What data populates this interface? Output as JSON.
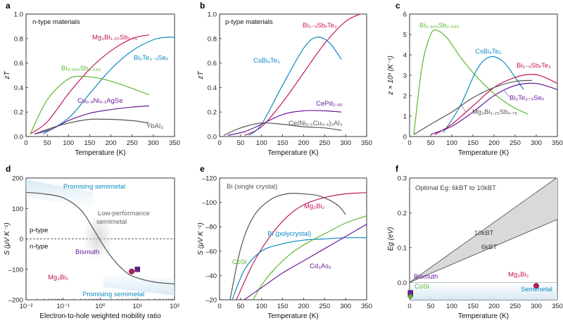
{
  "figure": {
    "panels": [
      "a",
      "b",
      "c",
      "d",
      "e",
      "f"
    ]
  },
  "colors": {
    "green": "#5DB82E",
    "red": "#C2185B",
    "blue": "#0C8AC2",
    "purple": "#6A1B9A",
    "gray": "#555555",
    "shade": "#D6E8F4",
    "gapfill": "#D9D9D9"
  },
  "chart_data": [
    {
      "id": "a",
      "type": "line",
      "title": "n-type materials",
      "xlabel": "Temperature (K)",
      "ylabel": "zT",
      "xlim": [
        0,
        350
      ],
      "ylim": [
        0,
        1.0
      ],
      "xticks": [
        "0",
        "50",
        "100",
        "150",
        "200",
        "250",
        "300",
        "350"
      ],
      "yticks": [
        "0.0",
        "0.2",
        "0.4",
        "0.6",
        "0.8",
        "1.0"
      ],
      "series": [
        {
          "name": "Mg3Bi1.25Sb0.75",
          "color": "red",
          "x": [
            10,
            50,
            100,
            150,
            200,
            250,
            290
          ],
          "y": [
            0.02,
            0.12,
            0.35,
            0.55,
            0.7,
            0.8,
            0.83
          ]
        },
        {
          "name": "Bi2Te3–xSex",
          "color": "blue",
          "x": [
            40,
            100,
            150,
            200,
            250,
            300,
            330,
            350
          ],
          "y": [
            0.02,
            0.15,
            0.35,
            0.55,
            0.7,
            0.79,
            0.81,
            0.81
          ]
        },
        {
          "name": "Bi0.905Sb0.095",
          "color": "green",
          "x": [
            10,
            50,
            100,
            140,
            180,
            220,
            260,
            290
          ],
          "y": [
            0.02,
            0.3,
            0.47,
            0.49,
            0.47,
            0.43,
            0.38,
            0.34
          ]
        },
        {
          "name": "Cu0.9Ni0.1AgSe",
          "color": "purple",
          "x": [
            20,
            60,
            100,
            150,
            200,
            250,
            290
          ],
          "y": [
            0.02,
            0.06,
            0.13,
            0.19,
            0.22,
            0.24,
            0.25
          ]
        },
        {
          "name": "YbAl3",
          "color": "gray",
          "x": [
            20,
            60,
            100,
            150,
            200,
            250,
            290
          ],
          "y": [
            0.02,
            0.07,
            0.11,
            0.14,
            0.14,
            0.13,
            0.11
          ]
        }
      ],
      "labels": [
        {
          "text": "n-type materials"
        },
        {
          "text": "Mg₃Bi₁.₂₅Sb₀.₇₅"
        },
        {
          "text": "Bi₂Te₃₋ₓSeₓ"
        },
        {
          "text": "Bi₀.₉₀₅Sb₀.₀₉₅"
        },
        {
          "text": "Cu₀.₉Ni₀.₁AgSe"
        },
        {
          "text": "YbAl₃"
        }
      ]
    },
    {
      "id": "b",
      "type": "line",
      "title": "p-type materials",
      "xlabel": "Temperature (K)",
      "ylabel": "zT",
      "xlim": [
        0,
        350
      ],
      "ylim": [
        0,
        1.0
      ],
      "xticks": [
        "0",
        "50",
        "100",
        "150",
        "200",
        "250",
        "300",
        "350"
      ],
      "yticks": [
        "0.0",
        "0.2",
        "0.4",
        "0.6",
        "0.8",
        "1.0"
      ],
      "series": [
        {
          "name": "Bi2–xSbxTe3",
          "color": "red",
          "x": [
            60,
            100,
            150,
            200,
            250,
            300,
            335
          ],
          "y": [
            0.01,
            0.08,
            0.28,
            0.52,
            0.76,
            0.94,
            1.0
          ]
        },
        {
          "name": "CsBi4Te6",
          "color": "blue",
          "x": [
            70,
            100,
            150,
            200,
            230,
            260,
            290
          ],
          "y": [
            0.01,
            0.1,
            0.42,
            0.72,
            0.81,
            0.77,
            0.63
          ]
        },
        {
          "name": "CePd2.95",
          "color": "purple",
          "x": [
            20,
            60,
            100,
            150,
            200,
            250,
            290
          ],
          "y": [
            0.01,
            0.04,
            0.1,
            0.18,
            0.21,
            0.21,
            0.2
          ]
        },
        {
          "name": "Ce(Ni0.6Cu0.4)2Al3",
          "color": "gray",
          "x": [
            10,
            50,
            100,
            150,
            200,
            250,
            290
          ],
          "y": [
            0.01,
            0.07,
            0.11,
            0.1,
            0.08,
            0.07,
            0.05
          ]
        }
      ],
      "labels": [
        {
          "text": "p-type materials"
        },
        {
          "text": "Bi₂₋ₓSbₓTe₃"
        },
        {
          "text": "CsBi₄Te₆"
        },
        {
          "text": "CePd₂.₉₅"
        },
        {
          "text": "Ce(Ni₀.₆Cu₀.₄)₂Al₃"
        }
      ]
    },
    {
      "id": "c",
      "type": "line",
      "xlabel": "Temperature (K)",
      "ylabel": "z × 10³ (K⁻¹)",
      "xlim": [
        0,
        350
      ],
      "ylim": [
        0,
        6
      ],
      "xticks": [
        "0",
        "50",
        "100",
        "150",
        "200",
        "250",
        "300",
        "350"
      ],
      "yticks": [
        "0",
        "1",
        "2",
        "3",
        "4",
        "5",
        "6"
      ],
      "series": [
        {
          "name": "Bi0.905Sb0.095",
          "color": "green",
          "x": [
            10,
            30,
            50,
            65,
            90,
            120,
            160,
            200,
            240,
            280
          ],
          "y": [
            0.1,
            3.5,
            5.0,
            5.2,
            4.8,
            3.9,
            2.9,
            2.1,
            1.5,
            1.1
          ]
        },
        {
          "name": "CsBi4Te6",
          "color": "blue",
          "x": [
            80,
            120,
            160,
            190,
            220,
            250,
            270
          ],
          "y": [
            0.2,
            1.5,
            3.3,
            3.9,
            3.7,
            2.9,
            2.3
          ]
        },
        {
          "name": "Bi2–xSbxTe3",
          "color": "red",
          "x": [
            60,
            100,
            150,
            200,
            250,
            290,
            320,
            350
          ],
          "y": [
            0.1,
            0.6,
            1.5,
            2.4,
            2.9,
            3.05,
            2.9,
            2.6
          ]
        },
        {
          "name": "Bi2Te3–xSex",
          "color": "purple",
          "x": [
            50,
            100,
            150,
            200,
            250,
            300,
            350
          ],
          "y": [
            0.1,
            0.5,
            1.2,
            2.0,
            2.5,
            2.6,
            2.3
          ]
        },
        {
          "name": "Mg3Bi1.25Sb0.75",
          "color": "gray",
          "x": [
            10,
            50,
            100,
            150,
            200,
            250,
            290
          ],
          "y": [
            0.1,
            0.6,
            1.2,
            1.9,
            2.4,
            2.7,
            2.75
          ]
        }
      ],
      "labels": [
        {
          "text": "Bi₀.₉₀₅Sb₀.₀₉₅"
        },
        {
          "text": "CsBi₄Te₆"
        },
        {
          "text": "Bi₂₋ₓSbₓTe₃"
        },
        {
          "text": "Bi₂Te₃₋ₓSeₓ"
        },
        {
          "text": "Mg₃Bi₁.₂₅Sb₀.₇₅"
        }
      ]
    },
    {
      "id": "d",
      "type": "line",
      "xlabel": "Electron-to-hole weighted mobility ratio",
      "ylabel": "S (μV K⁻¹)",
      "xscale": "log",
      "xlim": [
        0.01,
        100
      ],
      "ylim": [
        -200,
        200
      ],
      "xticks": [
        "10⁻²",
        "10⁻¹",
        "10⁰",
        "10¹",
        "10²"
      ],
      "yticks": [
        "200",
        "100",
        "0",
        "–100",
        "–200"
      ],
      "series": [
        {
          "name": "S curve",
          "color": "gray",
          "x": [
            0.01,
            0.03,
            0.1,
            0.3,
            0.6,
            1,
            2,
            5,
            10,
            30,
            100
          ],
          "y": [
            153,
            148,
            135,
            95,
            40,
            -5,
            -60,
            -110,
            -128,
            -142,
            -148
          ]
        }
      ],
      "points": [
        {
          "name": "Mg3Bi2",
          "x": 7,
          "y": -107,
          "color": "red",
          "marker": "circle"
        },
        {
          "name": "Bismuth",
          "x": 10,
          "y": -100,
          "color": "purple",
          "marker": "square"
        }
      ],
      "labels": [
        {
          "text": "Promising semimetal"
        },
        {
          "text": "Low-performance"
        },
        {
          "text": "semimetal"
        },
        {
          "text": "p-type"
        },
        {
          "text": "n-type"
        },
        {
          "text": "Bismuth"
        },
        {
          "text": "Mg₃Bi₂"
        },
        {
          "text": "Promising semimetal"
        }
      ]
    },
    {
      "id": "e",
      "type": "line",
      "xlabel": "Temperature (K)",
      "ylabel": "S (μV K⁻¹)",
      "xlim": [
        0,
        350
      ],
      "ylim": [
        -20,
        -120
      ],
      "xticks": [
        "0",
        "50",
        "100",
        "150",
        "200",
        "250",
        "300",
        "350"
      ],
      "yticks": [
        "–120",
        "–100",
        "–80",
        "–60",
        "–40",
        "–20"
      ],
      "series": [
        {
          "name": "Bi (single crystal)",
          "color": "gray",
          "x": [
            25,
            50,
            80,
            120,
            160,
            200,
            240,
            280,
            300
          ],
          "y": [
            -20,
            -62,
            -88,
            -102,
            -107,
            -107,
            -105,
            -98,
            -90
          ]
        },
        {
          "name": "Mg3Bi2",
          "color": "red",
          "x": [
            40,
            80,
            120,
            160,
            200,
            250,
            300,
            350
          ],
          "y": [
            -20,
            -50,
            -72,
            -88,
            -98,
            -104,
            -107,
            -108
          ]
        },
        {
          "name": "Bi (polycrystal)",
          "color": "blue",
          "x": [
            30,
            60,
            100,
            150,
            200,
            250,
            300,
            350
          ],
          "y": [
            -20,
            -45,
            -60,
            -66,
            -69,
            -70,
            -71,
            -71
          ]
        },
        {
          "name": "CoSi",
          "color": "green",
          "x": [
            80,
            100,
            130,
            170,
            210,
            260,
            300,
            350
          ],
          "y": [
            -20,
            -32,
            -45,
            -58,
            -67,
            -76,
            -83,
            -89
          ]
        },
        {
          "name": "Cd3As2",
          "color": "purple",
          "x": [
            50,
            100,
            150,
            200,
            250,
            300,
            350
          ],
          "y": [
            -18,
            -30,
            -42,
            -52,
            -62,
            -72,
            -82
          ]
        }
      ],
      "labels": [
        {
          "text": "Bi (single crystal)"
        },
        {
          "text": "Mg₃Bi₂"
        },
        {
          "text": "Bi (polycrystal)"
        },
        {
          "text": "CoSi"
        },
        {
          "text": "Cd₃As₂"
        }
      ]
    },
    {
      "id": "f",
      "type": "area",
      "title": "Optimal Eg: 6kBT to 10kBT",
      "xlabel": "Temperature (K)",
      "ylabel": "Eg (eV)",
      "xlim": [
        0,
        350
      ],
      "ylim": [
        -0.05,
        0.3
      ],
      "xticks": [
        "0",
        "50",
        "100",
        "150",
        "200",
        "250",
        "300",
        "350"
      ],
      "yticks": [
        "0.3",
        "0.2",
        "0.1",
        "0.0"
      ],
      "series": [
        {
          "name": "10kBT",
          "color": "gray",
          "x": [
            0,
            350
          ],
          "y": [
            0,
            0.302
          ]
        },
        {
          "name": "6kBT",
          "color": "gray",
          "x": [
            0,
            350
          ],
          "y": [
            0,
            0.181
          ]
        }
      ],
      "points": [
        {
          "name": "Bismuth",
          "x": 2,
          "y": -0.03,
          "color": "purple",
          "marker": "square"
        },
        {
          "name": "CoSi",
          "x": 2,
          "y": -0.04,
          "color": "green",
          "marker": "diamond"
        },
        {
          "name": "Mg3Bi2",
          "x": 300,
          "y": -0.01,
          "color": "red",
          "marker": "circle"
        }
      ],
      "labels": [
        {
          "text": "Optimal Eg: 6kBT to 10kBT"
        },
        {
          "text": "10kBT"
        },
        {
          "text": "6kBT"
        },
        {
          "text": "Bismuth"
        },
        {
          "text": "CoSi"
        },
        {
          "text": "Mg₃Bi₂"
        },
        {
          "text": "Semimetal"
        }
      ]
    }
  ]
}
